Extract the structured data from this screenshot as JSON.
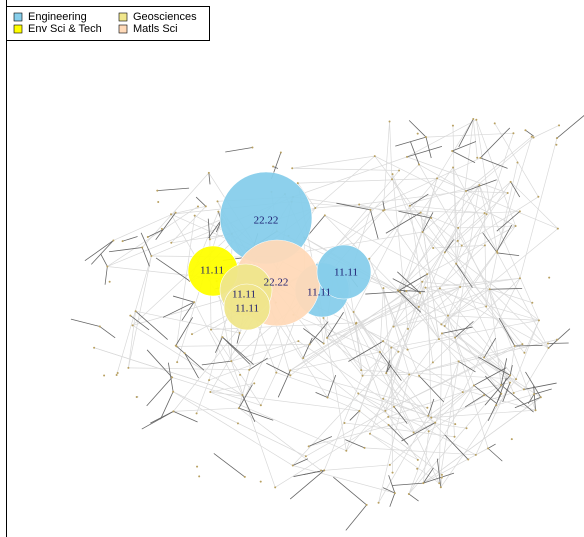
{
  "legend": [
    {
      "label": "Engineering",
      "color": "#87ceeb"
    },
    {
      "label": "Env Sci & Tech",
      "color": "#ffff00"
    },
    {
      "label": "Geosciences",
      "color": "#f0e68c"
    },
    {
      "label": "Matls Sci",
      "color": "#ffdab9"
    }
  ],
  "nodes": [
    {
      "label": "22.22",
      "color": "#87ceeb"
    },
    {
      "label": "11.11",
      "color": "#87ceeb"
    },
    {
      "label": "22.22",
      "color": "#ffdab9"
    },
    {
      "label": "11.11",
      "color": "#87ceeb"
    },
    {
      "label": "11.11",
      "color": "#ffff00"
    },
    {
      "label": "11.11",
      "color": "#f0e68c"
    },
    {
      "label": "11.11",
      "color": "#f0e68c"
    }
  ]
}
